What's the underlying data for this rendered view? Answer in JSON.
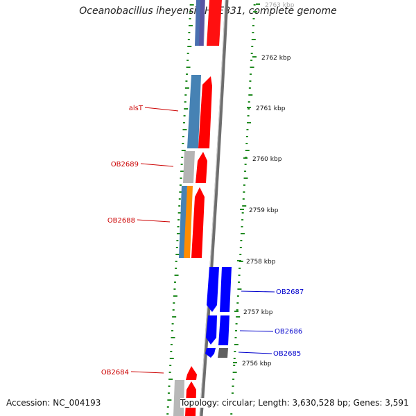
{
  "title": "Oceanobacillus iheyensis HTE831, complete genome",
  "footer": {
    "accession": "Accession: NC_004193",
    "summary": "Topology: circular; Length: 3,630,528 bp; Genes: 3,591"
  },
  "colors": {
    "forward_cds": "#ff0000",
    "reverse_cds": "#0000ff",
    "blue_track": "#4682b4",
    "orange_track": "#ff8c00",
    "gray_track": "#b0b0b0",
    "gc_skew": "#228b22",
    "backbone": "#808080",
    "left_label": "#cc0000",
    "right_label": "#0000cc"
  },
  "scale_labels": [
    "2763 kbp",
    "2762 kbp",
    "2761 kbp",
    "2760 kbp",
    "2759 kbp",
    "2758 kbp",
    "2757 kbp",
    "2756 kbp"
  ],
  "left_gene_labels": [
    "alsT",
    "OB2689",
    "OB2688",
    "OB2684"
  ],
  "right_gene_labels": [
    "OB2687",
    "OB2686",
    "OB2685"
  ]
}
